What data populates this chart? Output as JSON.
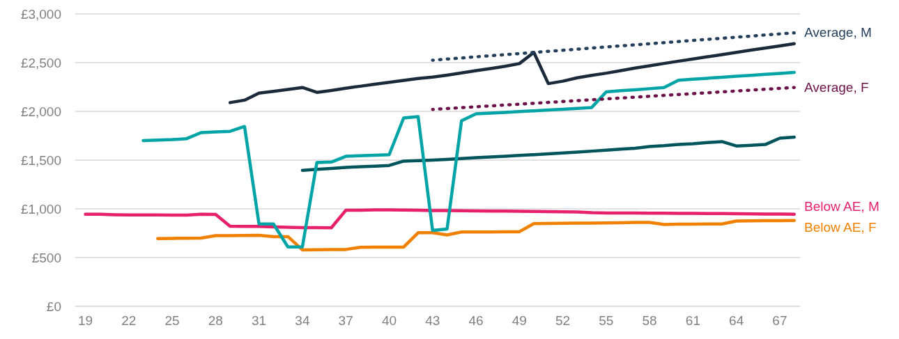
{
  "chart_data": {
    "type": "line",
    "x": [
      19,
      20,
      21,
      22,
      23,
      24,
      25,
      26,
      27,
      28,
      29,
      30,
      31,
      32,
      33,
      34,
      35,
      36,
      37,
      38,
      39,
      40,
      41,
      42,
      43,
      44,
      45,
      46,
      47,
      48,
      49,
      50,
      51,
      52,
      53,
      54,
      55,
      56,
      57,
      58,
      59,
      60,
      61,
      62,
      63,
      64,
      65,
      66,
      67,
      68
    ],
    "xlim": [
      18.3,
      68.4
    ],
    "xticks": [
      19,
      22,
      25,
      28,
      31,
      34,
      37,
      40,
      43,
      46,
      49,
      52,
      55,
      58,
      61,
      64,
      67
    ],
    "ylim": [
      0,
      3000
    ],
    "yticks": [
      {
        "value": 0,
        "label": "£0"
      },
      {
        "value": 500,
        "label": "£500"
      },
      {
        "value": 1000,
        "label": "£1,000"
      },
      {
        "value": 1500,
        "label": "£1,500"
      },
      {
        "value": 2000,
        "label": "£2,000"
      },
      {
        "value": 2500,
        "label": "£2,500"
      },
      {
        "value": 3000,
        "label": "£3,000"
      }
    ],
    "grid": "y",
    "marker": "none",
    "line_style": "solid",
    "series": [
      {
        "name": "Below AE, F",
        "color": "#f08000",
        "values": [
          null,
          null,
          null,
          null,
          null,
          695,
          697,
          698,
          700,
          725,
          725,
          727,
          728,
          715,
          715,
          579,
          580,
          582,
          583,
          605,
          607,
          608,
          608,
          755,
          755,
          732,
          762,
          762,
          763,
          764,
          765,
          849,
          850,
          852,
          853,
          854,
          855,
          857,
          860,
          861,
          840,
          842,
          843,
          844,
          845,
          875,
          877,
          878,
          879,
          880
        ]
      },
      {
        "name": "Below AE, M",
        "color": "#e6206b",
        "values": [
          945,
          944,
          940,
          938,
          938,
          937,
          936,
          936,
          945,
          943,
          822,
          820,
          820,
          815,
          810,
          808,
          808,
          805,
          985,
          985,
          990,
          990,
          988,
          985,
          982,
          982,
          980,
          978,
          977,
          976,
          975,
          973,
          972,
          970,
          968,
          960,
          958,
          957,
          957,
          956,
          955,
          954,
          953,
          952,
          951,
          950,
          948,
          947,
          946,
          945
        ]
      },
      {
        "color": "#00545c",
        "values": [
          null,
          null,
          null,
          null,
          null,
          null,
          null,
          null,
          null,
          null,
          null,
          null,
          null,
          null,
          null,
          1395,
          1405,
          1415,
          1425,
          1432,
          1438,
          1445,
          1490,
          1495,
          1500,
          1508,
          1516,
          1525,
          1533,
          1540,
          1548,
          1556,
          1565,
          1573,
          1582,
          1592,
          1602,
          1612,
          1622,
          1640,
          1648,
          1660,
          1668,
          1680,
          1690,
          1645,
          1652,
          1660,
          1725,
          1735
        ]
      },
      {
        "color": "#00a3a6",
        "values": [
          null,
          null,
          null,
          null,
          1700,
          1705,
          1710,
          1720,
          1782,
          1790,
          1795,
          1845,
          845,
          845,
          609,
          609,
          1475,
          1480,
          1539,
          1545,
          1550,
          1555,
          1932,
          1946,
          779,
          793,
          1904,
          1975,
          1983,
          1990,
          1998,
          2006,
          2014,
          2022,
          2030,
          2040,
          2200,
          2212,
          2222,
          2233,
          2245,
          2320,
          2330,
          2340,
          2350,
          2360,
          2370,
          2380,
          2390,
          2400
        ]
      },
      {
        "color": "#1b2a3a",
        "values": [
          null,
          null,
          null,
          null,
          null,
          null,
          null,
          null,
          null,
          null,
          2090,
          2115,
          2188,
          2205,
          2225,
          2245,
          2195,
          2215,
          2238,
          2258,
          2278,
          2298,
          2318,
          2338,
          2352,
          2372,
          2395,
          2418,
          2440,
          2462,
          2490,
          2605,
          2285,
          2310,
          2345,
          2370,
          2392,
          2418,
          2444,
          2468,
          2492,
          2515,
          2538,
          2560,
          2582,
          2605,
          2628,
          2650,
          2672,
          2694
        ]
      },
      {
        "name": "Average, F",
        "color": "#6b1048",
        "line_style": "dotted",
        "values": [
          null,
          null,
          null,
          null,
          null,
          null,
          null,
          null,
          null,
          null,
          null,
          null,
          null,
          null,
          null,
          null,
          null,
          null,
          null,
          null,
          null,
          null,
          null,
          null,
          2020,
          2029,
          2038,
          2047,
          2056,
          2065,
          2074,
          2083,
          2092,
          2101,
          2110,
          2119,
          2128,
          2137,
          2146,
          2155,
          2164,
          2173,
          2182,
          2191,
          2200,
          2209,
          2218,
          2227,
          2236,
          2245
        ]
      },
      {
        "name": "Average, M",
        "color": "#243f5c",
        "line_style": "dotted",
        "values": [
          null,
          null,
          null,
          null,
          null,
          null,
          null,
          null,
          null,
          null,
          null,
          null,
          null,
          null,
          null,
          null,
          null,
          null,
          null,
          null,
          null,
          null,
          null,
          null,
          2525,
          2537,
          2548,
          2560,
          2571,
          2582,
          2593,
          2605,
          2616,
          2627,
          2638,
          2650,
          2661,
          2672,
          2683,
          2694,
          2705,
          2717,
          2728,
          2739,
          2750,
          2761,
          2772,
          2784,
          2795,
          2805
        ]
      }
    ]
  }
}
